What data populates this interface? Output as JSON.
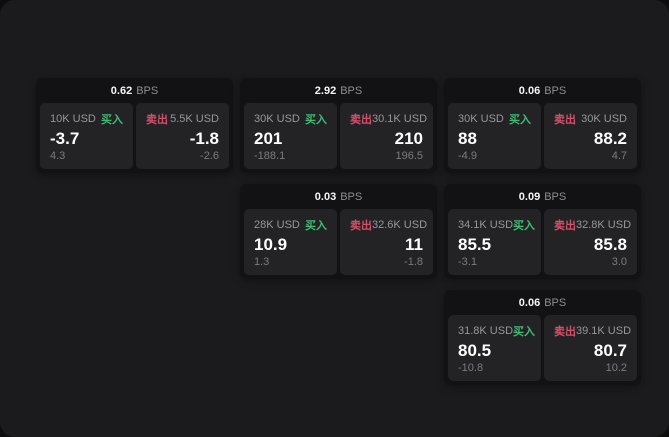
{
  "units": {
    "bps": "BPS"
  },
  "labels": {
    "buy": "买入",
    "sell": "卖出"
  },
  "colors": {
    "background": "#1b1b1d",
    "card_background": "#121214",
    "panel_background": "#232326",
    "buy_green": "#3fbb73",
    "sell_red": "#d4506a",
    "primary_text": "#ffffff",
    "muted_text": "#97979b",
    "dim_text": "#7b7b80"
  },
  "cards": [
    {
      "row": 0,
      "col": 0,
      "bps": "0.62",
      "buy": {
        "size": "10K USD",
        "value": "-3.7",
        "delta": "4.3"
      },
      "sell": {
        "size": "5.5K USD",
        "value": "-1.8",
        "delta": "-2.6"
      }
    },
    {
      "row": 0,
      "col": 1,
      "bps": "2.92",
      "buy": {
        "size": "30K USD",
        "value": "201",
        "delta": "-188.1"
      },
      "sell": {
        "size": "30.1K USD",
        "value": "210",
        "delta": "196.5"
      }
    },
    {
      "row": 0,
      "col": 2,
      "bps": "0.06",
      "buy": {
        "size": "30K USD",
        "value": "88",
        "delta": "-4.9"
      },
      "sell": {
        "size": "30K USD",
        "value": "88.2",
        "delta": "4.7"
      }
    },
    {
      "row": 1,
      "col": 1,
      "bps": "0.03",
      "buy": {
        "size": "28K USD",
        "value": "10.9",
        "delta": "1.3"
      },
      "sell": {
        "size": "32.6K USD",
        "value": "11",
        "delta": "-1.8"
      }
    },
    {
      "row": 1,
      "col": 2,
      "bps": "0.09",
      "buy": {
        "size": "34.1K USD",
        "value": "85.5",
        "delta": "-3.1"
      },
      "sell": {
        "size": "32.8K USD",
        "value": "85.8",
        "delta": "3.0"
      }
    },
    {
      "row": 2,
      "col": 2,
      "bps": "0.06",
      "buy": {
        "size": "31.8K USD",
        "value": "80.5",
        "delta": "-10.8"
      },
      "sell": {
        "size": "39.1K USD",
        "value": "80.7",
        "delta": "10.2"
      }
    }
  ]
}
